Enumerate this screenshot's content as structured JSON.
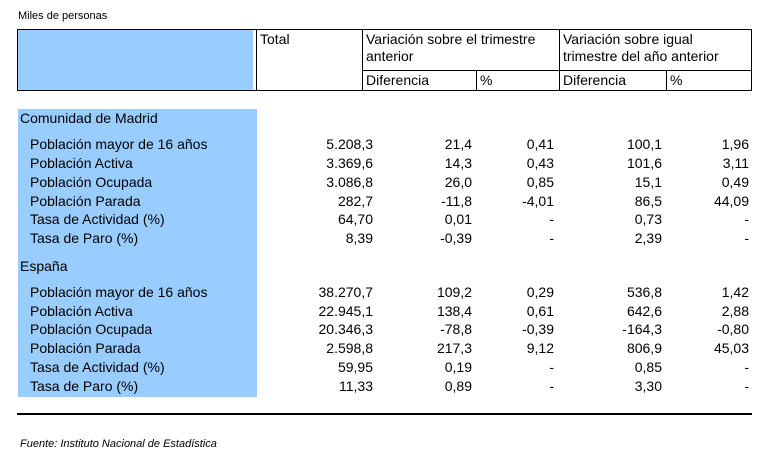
{
  "units_note": "Miles de personas",
  "headers": {
    "total": "Total",
    "var_trimestre": "Variación sobre el trimestre anterior",
    "var_anual_line1": "Variación sobre igual",
    "var_anual_line2": "trimestre del año anterior",
    "diferencia": "Diferencia",
    "pct": "%"
  },
  "regions": [
    {
      "name": "Comunidad de Madrid",
      "rows": [
        {
          "label": "Población mayor de 16 años",
          "total": "5.208,3",
          "d_trim": "21,4",
          "p_trim": "0,41",
          "d_anual": "100,1",
          "p_anual": "1,96"
        },
        {
          "label": "Población Activa",
          "total": "3.369,6",
          "d_trim": "14,3",
          "p_trim": "0,43",
          "d_anual": "101,6",
          "p_anual": "3,11"
        },
        {
          "label": "Población Ocupada",
          "total": "3.086,8",
          "d_trim": "26,0",
          "p_trim": "0,85",
          "d_anual": "15,1",
          "p_anual": "0,49"
        },
        {
          "label": "Población Parada",
          "total": "282,7",
          "d_trim": "-11,8",
          "p_trim": "-4,01",
          "d_anual": "86,5",
          "p_anual": "44,09"
        },
        {
          "label": "Tasa de Actividad (%)",
          "total": "64,70",
          "d_trim": "0,01",
          "p_trim": "-",
          "d_anual": "0,73",
          "p_anual": "-"
        },
        {
          "label": "Tasa de Paro (%)",
          "total": "8,39",
          "d_trim": "-0,39",
          "p_trim": "-",
          "d_anual": "2,39",
          "p_anual": "-"
        }
      ]
    },
    {
      "name": "España",
      "rows": [
        {
          "label": "Población mayor de 16 años",
          "total": "38.270,7",
          "d_trim": "109,2",
          "p_trim": "0,29",
          "d_anual": "536,8",
          "p_anual": "1,42"
        },
        {
          "label": "Población Activa",
          "total": "22.945,1",
          "d_trim": "138,4",
          "p_trim": "0,61",
          "d_anual": "642,6",
          "p_anual": "2,88"
        },
        {
          "label": "Población Ocupada",
          "total": "20.346,3",
          "d_trim": "-78,8",
          "p_trim": "-0,39",
          "d_anual": "-164,3",
          "p_anual": "-0,80"
        },
        {
          "label": "Población Parada",
          "total": "2.598,8",
          "d_trim": "217,3",
          "p_trim": "9,12",
          "d_anual": "806,9",
          "p_anual": "45,03"
        },
        {
          "label": "Tasa de Actividad (%)",
          "total": "59,95",
          "d_trim": "0,19",
          "p_trim": "-",
          "d_anual": "0,85",
          "p_anual": "-"
        },
        {
          "label": "Tasa de Paro (%)",
          "total": "11,33",
          "d_trim": "0,89",
          "p_trim": "-",
          "d_anual": "3,30",
          "p_anual": "-"
        }
      ]
    }
  ],
  "footer": "Fuente: Instituto Nacional de Estadística"
}
